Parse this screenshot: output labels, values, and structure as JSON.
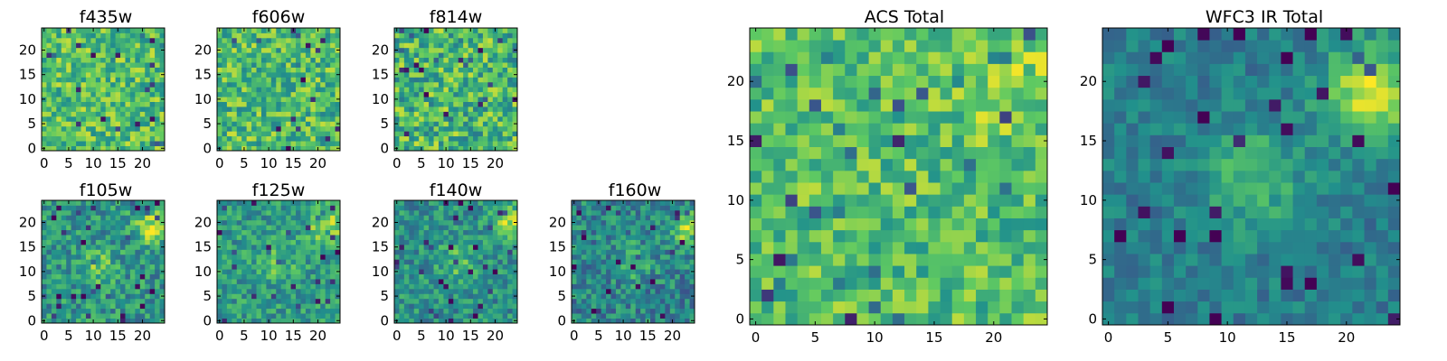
{
  "figure": {
    "background": "#ffffff",
    "colormap": "viridis",
    "colormap_stops": [
      "#440154",
      "#3b528b",
      "#21918c",
      "#5ec962",
      "#fde725"
    ]
  },
  "chart_data": [
    {
      "type": "heatmap",
      "title": "f435w",
      "grid_size": 25,
      "xticks": [
        "0",
        "5",
        "10",
        "15",
        "20"
      ],
      "yticks": [
        "0",
        "5",
        "10",
        "15",
        "20"
      ],
      "xlim": [
        -0.5,
        24.5
      ],
      "ylim": [
        -0.5,
        24.5
      ],
      "value_range": [
        0,
        1
      ],
      "pattern": "uniform noise",
      "mean": 0.7,
      "spread": 0.22,
      "blob": null
    },
    {
      "type": "heatmap",
      "title": "f606w",
      "grid_size": 25,
      "xticks": [
        "0",
        "5",
        "10",
        "15",
        "20"
      ],
      "yticks": [
        "0",
        "5",
        "10",
        "15",
        "20"
      ],
      "xlim": [
        -0.5,
        24.5
      ],
      "ylim": [
        -0.5,
        24.5
      ],
      "value_range": [
        0,
        1
      ],
      "pattern": "uniform noise",
      "mean": 0.68,
      "spread": 0.24,
      "blob": null
    },
    {
      "type": "heatmap",
      "title": "f814w",
      "grid_size": 25,
      "xticks": [
        "0",
        "5",
        "10",
        "15",
        "20"
      ],
      "yticks": [
        "0",
        "5",
        "10",
        "15",
        "20"
      ],
      "xlim": [
        -0.5,
        24.5
      ],
      "ylim": [
        -0.5,
        24.5
      ],
      "value_range": [
        0,
        1
      ],
      "pattern": "uniform noise",
      "mean": 0.66,
      "spread": 0.26,
      "blob": null
    },
    {
      "type": "heatmap",
      "title": "f105w",
      "grid_size": 25,
      "xticks": [
        "0",
        "5",
        "10",
        "15",
        "20"
      ],
      "yticks": [
        "0",
        "5",
        "10",
        "15",
        "20"
      ],
      "xlim": [
        -0.5,
        24.5
      ],
      "ylim": [
        -0.5,
        24.5
      ],
      "value_range": [
        0,
        1
      ],
      "pattern": "noise with bright sources",
      "mean": 0.52,
      "spread": 0.2,
      "blob": [
        {
          "x": 22,
          "y": 19,
          "amp": 0.35,
          "width": 2.5
        },
        {
          "x": 11,
          "y": 11,
          "amp": 0.22,
          "width": 2.5
        }
      ]
    },
    {
      "type": "heatmap",
      "title": "f125w",
      "grid_size": 25,
      "xticks": [
        "0",
        "5",
        "10",
        "15",
        "20"
      ],
      "yticks": [
        "0",
        "5",
        "10",
        "15",
        "20"
      ],
      "xlim": [
        -0.5,
        24.5
      ],
      "ylim": [
        -0.5,
        24.5
      ],
      "value_range": [
        0,
        1
      ],
      "pattern": "noise with bright sources",
      "mean": 0.54,
      "spread": 0.18,
      "blob": [
        {
          "x": 22,
          "y": 19,
          "amp": 0.35,
          "width": 2.6
        },
        {
          "x": 12,
          "y": 12,
          "amp": 0.2,
          "width": 2.6
        }
      ]
    },
    {
      "type": "heatmap",
      "title": "f140w",
      "grid_size": 25,
      "xticks": [
        "0",
        "5",
        "10",
        "15",
        "20"
      ],
      "yticks": [
        "0",
        "5",
        "10",
        "15",
        "20"
      ],
      "xlim": [
        -0.5,
        24.5
      ],
      "ylim": [
        -0.5,
        24.5
      ],
      "value_range": [
        0,
        1
      ],
      "pattern": "noise with bright sources",
      "mean": 0.5,
      "spread": 0.18,
      "blob": [
        {
          "x": 23,
          "y": 20,
          "amp": 0.4,
          "width": 2.4
        },
        {
          "x": 12,
          "y": 12,
          "amp": 0.2,
          "width": 2.6
        }
      ]
    },
    {
      "type": "heatmap",
      "title": "f160w",
      "grid_size": 25,
      "xticks": [
        "0",
        "5",
        "10",
        "15",
        "20"
      ],
      "yticks": [
        "0",
        "5",
        "10",
        "15",
        "20"
      ],
      "xlim": [
        -0.5,
        24.5
      ],
      "ylim": [
        -0.5,
        24.5
      ],
      "value_range": [
        0,
        1
      ],
      "pattern": "noise with bright sources",
      "mean": 0.45,
      "spread": 0.2,
      "blob": [
        {
          "x": 23,
          "y": 19,
          "amp": 0.42,
          "width": 2.4
        },
        {
          "x": 12,
          "y": 12,
          "amp": 0.22,
          "width": 2.6
        }
      ]
    },
    {
      "type": "heatmap",
      "title": "ACS Total",
      "grid_size": 25,
      "xticks": [
        "0",
        "5",
        "10",
        "15",
        "20"
      ],
      "yticks": [
        "0",
        "5",
        "10",
        "15",
        "20"
      ],
      "xlim": [
        -0.5,
        24.5
      ],
      "ylim": [
        -0.5,
        24.5
      ],
      "value_range": [
        0,
        1
      ],
      "pattern": "uniform noise",
      "mean": 0.7,
      "spread": 0.2,
      "blob": [
        {
          "x": 21,
          "y": 20,
          "amp": 0.15,
          "width": 3
        }
      ]
    },
    {
      "type": "heatmap",
      "title": "WFC3 IR Total",
      "grid_size": 25,
      "xticks": [
        "0",
        "5",
        "10",
        "15",
        "20"
      ],
      "yticks": [
        "0",
        "5",
        "10",
        "15",
        "20"
      ],
      "xlim": [
        -0.5,
        24.5
      ],
      "ylim": [
        -0.5,
        24.5
      ],
      "value_range": [
        0,
        1
      ],
      "pattern": "smooth with bright sources",
      "mean": 0.42,
      "spread": 0.12,
      "blob": [
        {
          "x": 22,
          "y": 19,
          "amp": 0.5,
          "width": 2.8
        },
        {
          "x": 12,
          "y": 12,
          "amp": 0.28,
          "width": 3
        }
      ]
    }
  ]
}
